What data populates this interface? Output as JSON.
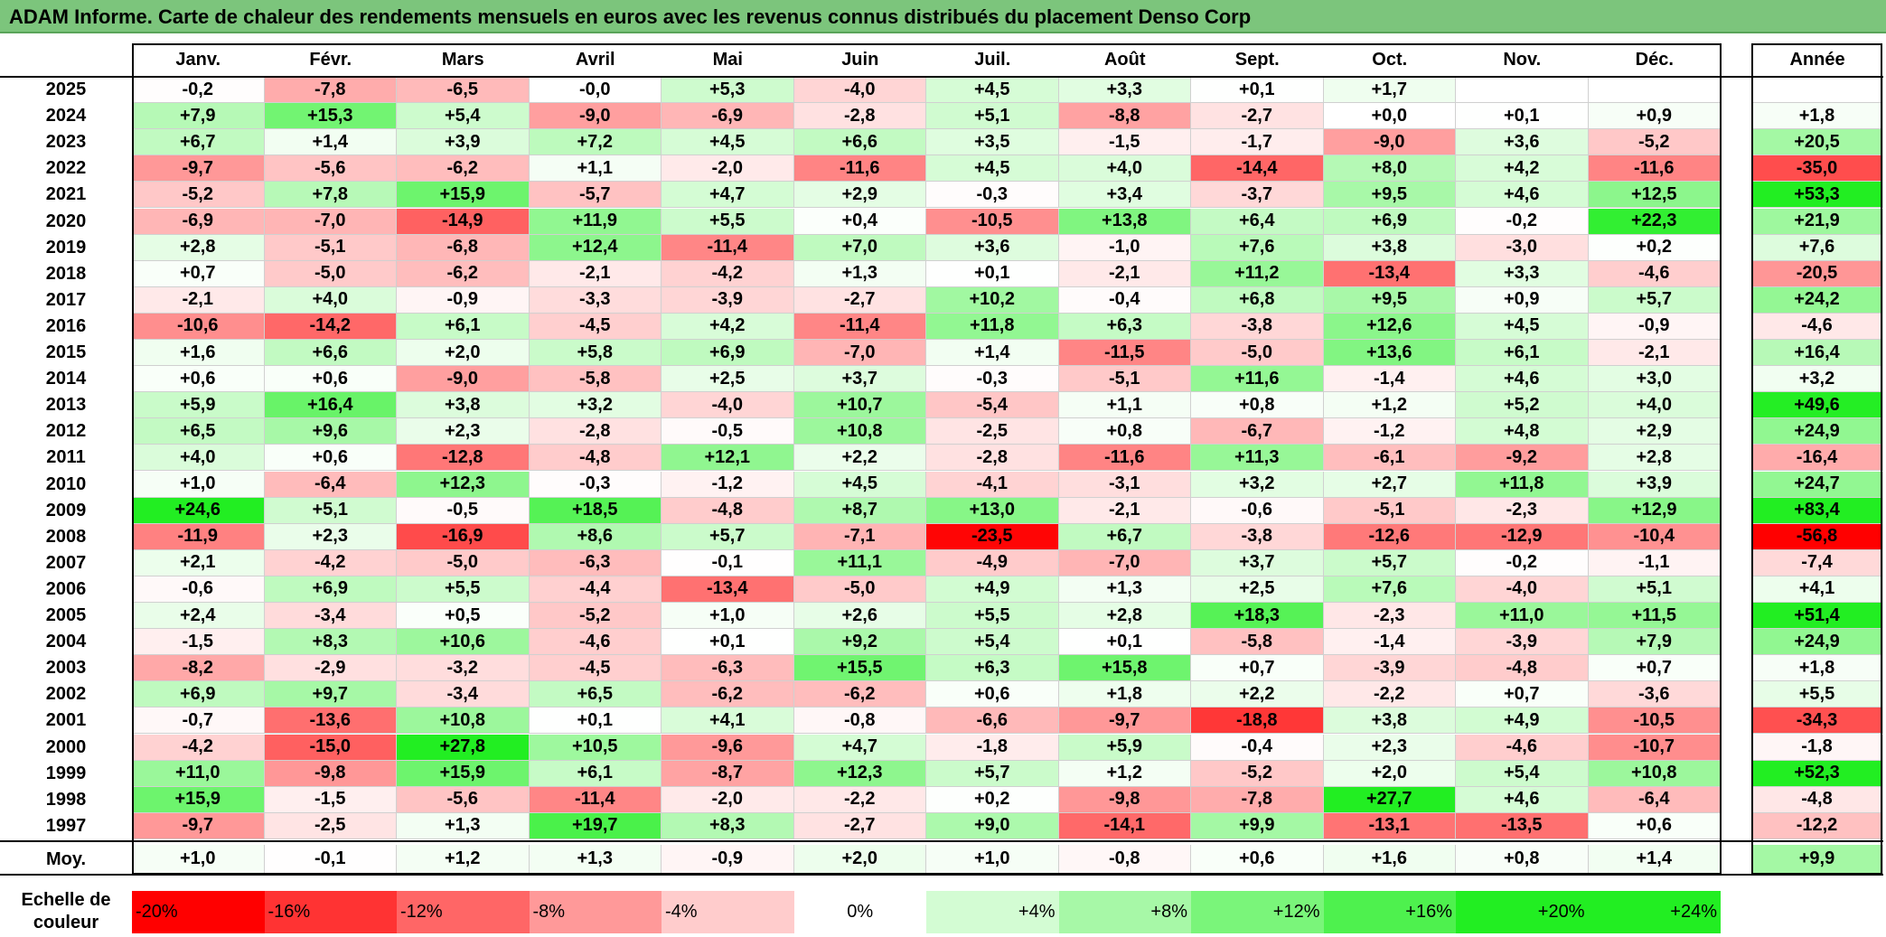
{
  "title": "ADAM Informe. Carte de chaleur des rendements mensuels en euros avec les revenus connus distribués du placement Denso Corp",
  "chart_data": {
    "type": "heatmap",
    "months": [
      "Janv.",
      "Févr.",
      "Mars",
      "Avril",
      "Mai",
      "Juin",
      "Juil.",
      "Août",
      "Sept.",
      "Oct.",
      "Nov.",
      "Déc."
    ],
    "year_header": "Année",
    "rows": [
      {
        "year": "2025",
        "values": [
          "-0,2",
          "-7,8",
          "-6,5",
          "-0,0",
          "+5,3",
          "-4,0",
          "+4,5",
          "+3,3",
          "+0,1",
          "+1,7",
          "",
          ""
        ],
        "annual": ""
      },
      {
        "year": "2024",
        "values": [
          "+7,9",
          "+15,3",
          "+5,4",
          "-9,0",
          "-6,9",
          "-2,8",
          "+5,1",
          "-8,8",
          "-2,7",
          "+0,0",
          "+0,1",
          "+0,9"
        ],
        "annual": "+1,8"
      },
      {
        "year": "2023",
        "values": [
          "+6,7",
          "+1,4",
          "+3,9",
          "+7,2",
          "+4,5",
          "+6,6",
          "+3,5",
          "-1,5",
          "-1,7",
          "-9,0",
          "+3,6",
          "-5,2"
        ],
        "annual": "+20,5"
      },
      {
        "year": "2022",
        "values": [
          "-9,7",
          "-5,6",
          "-6,2",
          "+1,1",
          "-2,0",
          "-11,6",
          "+4,5",
          "+4,0",
          "-14,4",
          "+8,0",
          "+4,2",
          "-11,6"
        ],
        "annual": "-35,0"
      },
      {
        "year": "2021",
        "values": [
          "-5,2",
          "+7,8",
          "+15,9",
          "-5,7",
          "+4,7",
          "+2,9",
          "-0,3",
          "+3,4",
          "-3,7",
          "+9,5",
          "+4,6",
          "+12,5"
        ],
        "annual": "+53,3"
      },
      {
        "year": "2020",
        "values": [
          "-6,9",
          "-7,0",
          "-14,9",
          "+11,9",
          "+5,5",
          "+0,4",
          "-10,5",
          "+13,8",
          "+6,4",
          "+6,9",
          "-0,2",
          "+22,3"
        ],
        "annual": "+21,9"
      },
      {
        "year": "2019",
        "values": [
          "+2,8",
          "-5,1",
          "-6,8",
          "+12,4",
          "-11,4",
          "+7,0",
          "+3,6",
          "-1,0",
          "+7,6",
          "+3,8",
          "-3,0",
          "+0,2"
        ],
        "annual": "+7,6"
      },
      {
        "year": "2018",
        "values": [
          "+0,7",
          "-5,0",
          "-6,2",
          "-2,1",
          "-4,2",
          "+1,3",
          "+0,1",
          "-2,1",
          "+11,2",
          "-13,4",
          "+3,3",
          "-4,6"
        ],
        "annual": "-20,5"
      },
      {
        "year": "2017",
        "values": [
          "-2,1",
          "+4,0",
          "-0,9",
          "-3,3",
          "-3,9",
          "-2,7",
          "+10,2",
          "-0,4",
          "+6,8",
          "+9,5",
          "+0,9",
          "+5,7"
        ],
        "annual": "+24,2"
      },
      {
        "year": "2016",
        "values": [
          "-10,6",
          "-14,2",
          "+6,1",
          "-4,5",
          "+4,2",
          "-11,4",
          "+11,8",
          "+6,3",
          "-3,8",
          "+12,6",
          "+4,5",
          "-0,9"
        ],
        "annual": "-4,6"
      },
      {
        "year": "2015",
        "values": [
          "+1,6",
          "+6,6",
          "+2,0",
          "+5,8",
          "+6,9",
          "-7,0",
          "+1,4",
          "-11,5",
          "-5,0",
          "+13,6",
          "+6,1",
          "-2,1"
        ],
        "annual": "+16,4"
      },
      {
        "year": "2014",
        "values": [
          "+0,6",
          "+0,6",
          "-9,0",
          "-5,8",
          "+2,5",
          "+3,7",
          "-0,3",
          "-5,1",
          "+11,6",
          "-1,4",
          "+4,6",
          "+3,0"
        ],
        "annual": "+3,2"
      },
      {
        "year": "2013",
        "values": [
          "+5,9",
          "+16,4",
          "+3,8",
          "+3,2",
          "-4,0",
          "+10,7",
          "-5,4",
          "+1,1",
          "+0,8",
          "+1,2",
          "+5,2",
          "+4,0"
        ],
        "annual": "+49,6"
      },
      {
        "year": "2012",
        "values": [
          "+6,5",
          "+9,6",
          "+2,3",
          "-2,8",
          "-0,5",
          "+10,8",
          "-2,5",
          "+0,8",
          "-6,7",
          "-1,2",
          "+4,8",
          "+2,9"
        ],
        "annual": "+24,9"
      },
      {
        "year": "2011",
        "values": [
          "+4,0",
          "+0,6",
          "-12,8",
          "-4,8",
          "+12,1",
          "+2,2",
          "-2,8",
          "-11,6",
          "+11,3",
          "-6,1",
          "-9,2",
          "+2,8"
        ],
        "annual": "-16,4"
      },
      {
        "year": "2010",
        "values": [
          "+1,0",
          "-6,4",
          "+12,3",
          "-0,3",
          "-1,2",
          "+4,5",
          "-4,1",
          "-3,1",
          "+3,2",
          "+2,7",
          "+11,8",
          "+3,9"
        ],
        "annual": "+24,7"
      },
      {
        "year": "2009",
        "values": [
          "+24,6",
          "+5,1",
          "-0,5",
          "+18,5",
          "-4,8",
          "+8,7",
          "+13,0",
          "-2,1",
          "-0,6",
          "-5,1",
          "-2,3",
          "+12,9"
        ],
        "annual": "+83,4"
      },
      {
        "year": "2008",
        "values": [
          "-11,9",
          "+2,3",
          "-16,9",
          "+8,6",
          "+5,7",
          "-7,1",
          "-23,5",
          "+6,7",
          "-3,8",
          "-12,6",
          "-12,9",
          "-10,4"
        ],
        "annual": "-56,8"
      },
      {
        "year": "2007",
        "values": [
          "+2,1",
          "-4,2",
          "-5,0",
          "-6,3",
          "-0,1",
          "+11,1",
          "-4,9",
          "-7,0",
          "+3,7",
          "+5,7",
          "-0,2",
          "-1,1"
        ],
        "annual": "-7,4"
      },
      {
        "year": "2006",
        "values": [
          "-0,6",
          "+6,9",
          "+5,5",
          "-4,4",
          "-13,4",
          "-5,0",
          "+4,9",
          "+1,3",
          "+2,5",
          "+7,6",
          "-4,0",
          "+5,1"
        ],
        "annual": "+4,1"
      },
      {
        "year": "2005",
        "values": [
          "+2,4",
          "-3,4",
          "+0,5",
          "-5,2",
          "+1,0",
          "+2,6",
          "+5,5",
          "+2,8",
          "+18,3",
          "-2,3",
          "+11,0",
          "+11,5"
        ],
        "annual": "+51,4"
      },
      {
        "year": "2004",
        "values": [
          "-1,5",
          "+8,3",
          "+10,6",
          "-4,6",
          "+0,1",
          "+9,2",
          "+5,4",
          "+0,1",
          "-5,8",
          "-1,4",
          "-3,9",
          "+7,9"
        ],
        "annual": "+24,9"
      },
      {
        "year": "2003",
        "values": [
          "-8,2",
          "-2,9",
          "-3,2",
          "-4,5",
          "-6,3",
          "+15,5",
          "+6,3",
          "+15,8",
          "+0,7",
          "-3,9",
          "-4,8",
          "+0,7"
        ],
        "annual": "+1,8"
      },
      {
        "year": "2002",
        "values": [
          "+6,9",
          "+9,7",
          "-3,4",
          "+6,5",
          "-6,2",
          "-6,2",
          "+0,6",
          "+1,8",
          "+2,2",
          "-2,2",
          "+0,7",
          "-3,6"
        ],
        "annual": "+5,5"
      },
      {
        "year": "2001",
        "values": [
          "-0,7",
          "-13,6",
          "+10,8",
          "+0,1",
          "+4,1",
          "-0,8",
          "-6,6",
          "-9,7",
          "-18,8",
          "+3,8",
          "+4,9",
          "-10,5"
        ],
        "annual": "-34,3"
      },
      {
        "year": "2000",
        "values": [
          "-4,2",
          "-15,0",
          "+27,8",
          "+10,5",
          "-9,6",
          "+4,7",
          "-1,8",
          "+5,9",
          "-0,4",
          "+2,3",
          "-4,6",
          "-10,7"
        ],
        "annual": "-1,8"
      },
      {
        "year": "1999",
        "values": [
          "+11,0",
          "-9,8",
          "+15,9",
          "+6,1",
          "-8,7",
          "+12,3",
          "+5,7",
          "+1,2",
          "-5,2",
          "+2,0",
          "+5,4",
          "+10,8"
        ],
        "annual": "+52,3"
      },
      {
        "year": "1998",
        "values": [
          "+15,9",
          "-1,5",
          "-5,6",
          "-11,4",
          "-2,0",
          "-2,2",
          "+0,2",
          "-9,8",
          "-7,8",
          "+27,7",
          "+4,6",
          "-6,4"
        ],
        "annual": "-4,8"
      },
      {
        "year": "1997",
        "values": [
          "-9,7",
          "-2,5",
          "+1,3",
          "+19,7",
          "+8,3",
          "-2,7",
          "+9,0",
          "-14,1",
          "+9,9",
          "-13,1",
          "-13,5",
          "+0,6"
        ],
        "annual": "-12,2"
      }
    ],
    "average": {
      "label": "Moy.",
      "values": [
        "+1,0",
        "-0,1",
        "+1,2",
        "+1,3",
        "-0,9",
        "+2,0",
        "+1,0",
        "-0,8",
        "+0,6",
        "+1,6",
        "+0,8",
        "+1,4"
      ],
      "annual": "+9,9"
    },
    "scale": {
      "label": "Echelle de couleur",
      "items": [
        {
          "label": "-20%",
          "value": -20,
          "align": "left"
        },
        {
          "label": "-16%",
          "value": -16,
          "align": "left"
        },
        {
          "label": "-12%",
          "value": -12,
          "align": "left"
        },
        {
          "label": "-8%",
          "value": -8,
          "align": "left"
        },
        {
          "label": "-4%",
          "value": -4,
          "align": "left"
        },
        {
          "label": "0%",
          "value": 0,
          "align": "center"
        },
        {
          "label": "+4%",
          "value": 4,
          "align": "right"
        },
        {
          "label": "+8%",
          "value": 8,
          "align": "right"
        },
        {
          "label": "+12%",
          "value": 12,
          "align": "right"
        },
        {
          "label": "+16%",
          "value": 16,
          "align": "right"
        },
        {
          "label": "+20%",
          "value": 20,
          "align": "right"
        },
        {
          "label": "+24%",
          "value": 24,
          "align": "right"
        }
      ]
    },
    "colors": {
      "negative": "#ff0000",
      "neutral": "#ffffff",
      "positive": "#22ee22",
      "title_bar": "#7cc57c"
    }
  }
}
